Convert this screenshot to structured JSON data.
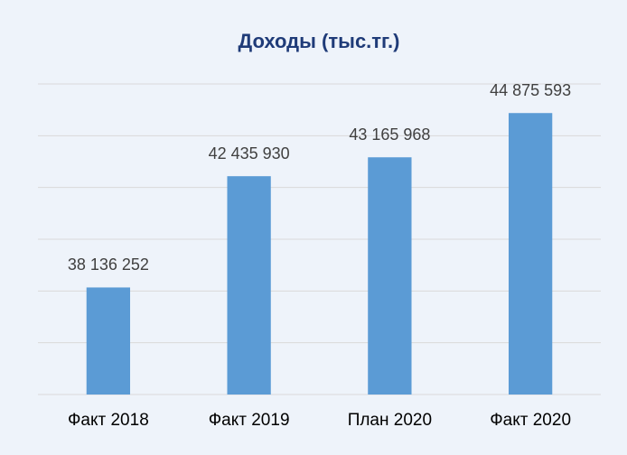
{
  "chart_data": {
    "type": "bar",
    "title": "Доходы (тыс.тг.)",
    "categories": [
      "Факт 2018",
      "Факт 2019",
      "План 2020",
      "Факт 2020"
    ],
    "values": [
      38136252,
      42435930,
      43165968,
      44875593
    ],
    "value_labels": [
      "38 136 252",
      "42 435 930",
      "43 165 968",
      "44 875 593"
    ],
    "color": "#5b9bd5",
    "ylim": [
      34000000,
      46000000
    ],
    "yticks": [
      34000000,
      36000000,
      38000000,
      40000000,
      42000000,
      44000000,
      46000000
    ],
    "grid": true
  }
}
